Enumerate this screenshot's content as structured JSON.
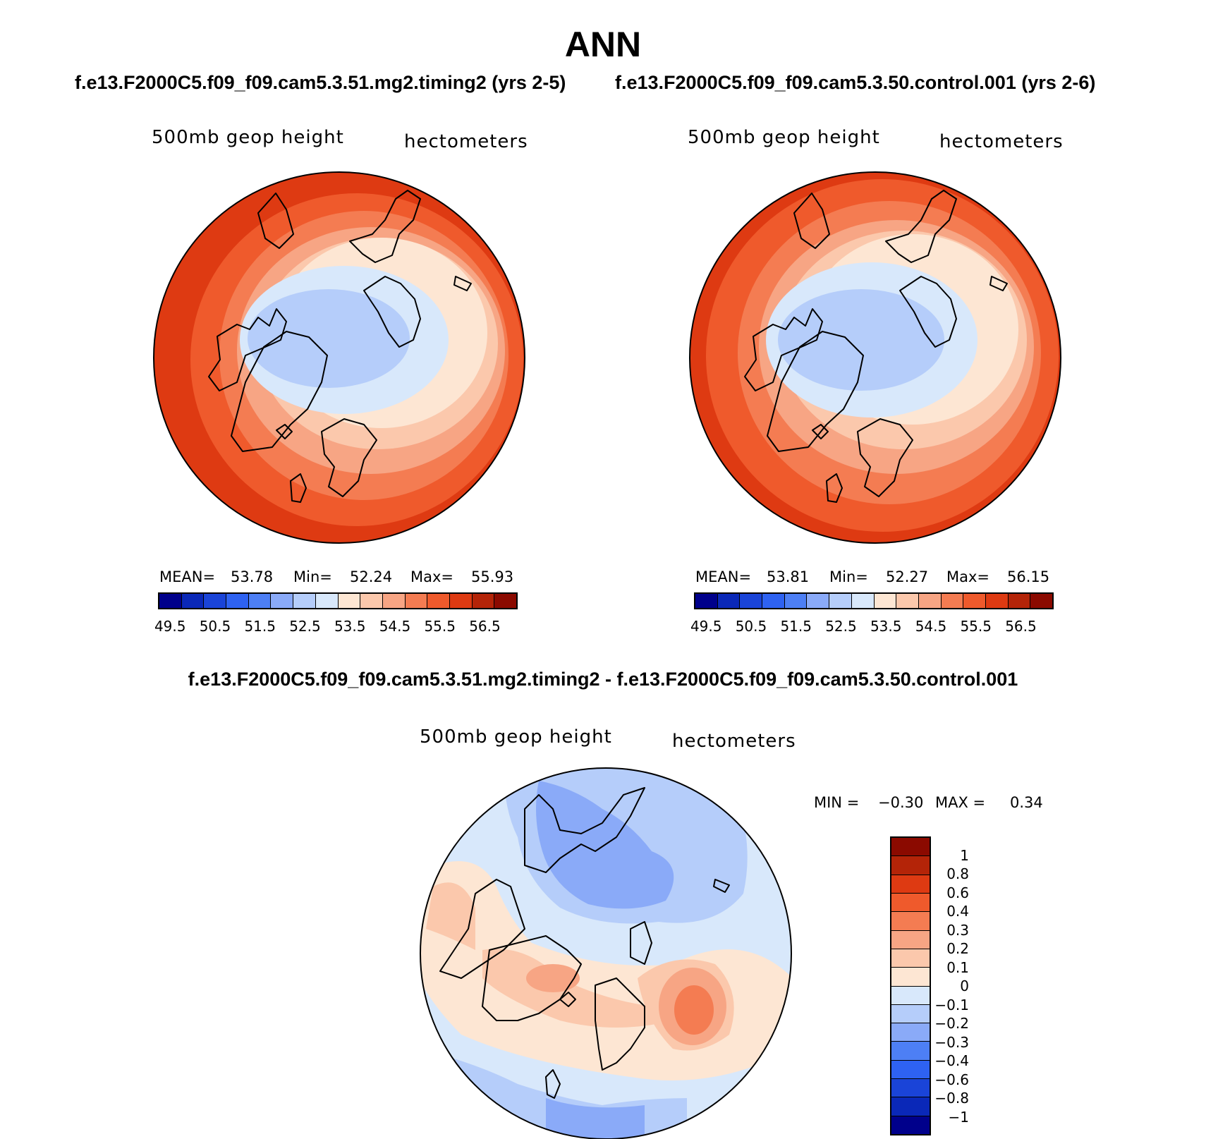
{
  "figure": {
    "title": "ANN",
    "case_a": "f.e13.F2000C5.f09_f09.cam5.3.51.mg2.timing2 (yrs 2-5)",
    "case_b": "f.e13.F2000C5.f09_f09.cam5.3.50.control.001 (yrs 2-6)",
    "diff_title": "f.e13.F2000C5.f09_f09.cam5.3.51.mg2.timing2 - f.e13.F2000C5.f09_f09.cam5.3.50.control.001"
  },
  "panels": {
    "left": {
      "variable": "500mb geop height",
      "units": "hectometers",
      "mean_label": "MEAN=",
      "mean": "53.78",
      "min_label": "Min=",
      "min": "52.24",
      "max_label": "Max=",
      "max": "55.93"
    },
    "right": {
      "variable": "500mb geop height",
      "units": "hectometers",
      "mean_label": "MEAN=",
      "mean": "53.81",
      "min_label": "Min=",
      "min": "52.27",
      "max_label": "Max=",
      "max": "56.15"
    },
    "diff": {
      "variable": "500mb geop height",
      "units": "hectometers",
      "min_label": "MIN =",
      "min": "−0.30",
      "max_label": "MAX =",
      "max": "0.34"
    }
  },
  "colorbar_abs": {
    "colors": [
      "#00008b",
      "#0a28b8",
      "#1a44d8",
      "#2e62f2",
      "#4d7ff5",
      "#8aaaf8",
      "#b5cdfa",
      "#d8e8fb",
      "#fde6d3",
      "#fbc8ac",
      "#f7a584",
      "#f47c52",
      "#ef5a2c",
      "#de3a12",
      "#b42408",
      "#8b0a00"
    ],
    "tick_labels": [
      "49.5",
      "50.5",
      "51.5",
      "52.5",
      "53.5",
      "54.5",
      "55.5",
      "56.5"
    ]
  },
  "colorbar_diff": {
    "colors": [
      "#8b0a00",
      "#b42408",
      "#de3a12",
      "#ef5a2c",
      "#f47c52",
      "#f7a584",
      "#fbc8ac",
      "#fde6d3",
      "#d8e8fb",
      "#b5cdfa",
      "#8aaaf8",
      "#4d7ff5",
      "#2e62f2",
      "#1a44d8",
      "#0a28b8",
      "#00008b"
    ],
    "tick_labels": [
      "1",
      "0.8",
      "0.6",
      "0.4",
      "0.3",
      "0.2",
      "0.1",
      "0",
      "−0.1",
      "−0.2",
      "−0.3",
      "−0.4",
      "−0.6",
      "−0.8",
      "−1"
    ]
  }
}
